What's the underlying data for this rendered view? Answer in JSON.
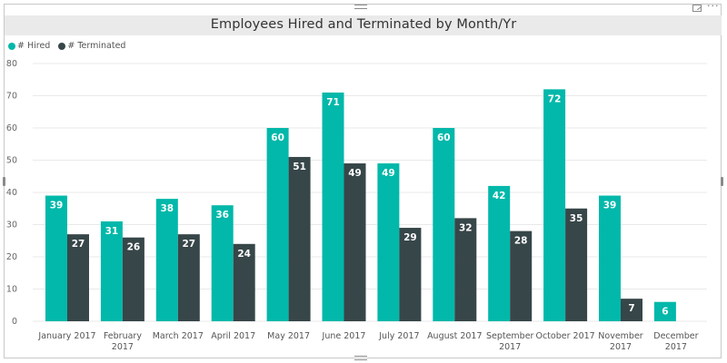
{
  "chart_data": {
    "type": "bar",
    "title": "Employees Hired and Terminated by Month/Yr",
    "categories": [
      [
        "January 2017"
      ],
      [
        "February",
        "2017"
      ],
      [
        "March 2017"
      ],
      [
        "April 2017"
      ],
      [
        "May 2017"
      ],
      [
        "June 2017"
      ],
      [
        "July 2017"
      ],
      [
        "August 2017"
      ],
      [
        "September",
        "2017"
      ],
      [
        "October 2017"
      ],
      [
        "November",
        "2017"
      ],
      [
        "December",
        "2017"
      ]
    ],
    "series": [
      {
        "name": "# Hired",
        "color": "#01b8aa",
        "values": [
          39,
          31,
          38,
          36,
          60,
          71,
          49,
          60,
          42,
          72,
          39,
          6
        ]
      },
      {
        "name": "# Terminated",
        "color": "#374649",
        "values": [
          27,
          26,
          27,
          24,
          51,
          49,
          29,
          32,
          28,
          35,
          7,
          null
        ]
      }
    ],
    "ylim": [
      0,
      80
    ],
    "yticks": [
      0,
      10,
      20,
      30,
      40,
      50,
      60,
      70,
      80
    ],
    "xlabel": "",
    "ylabel": "",
    "grid": true,
    "legend": "top-left"
  }
}
